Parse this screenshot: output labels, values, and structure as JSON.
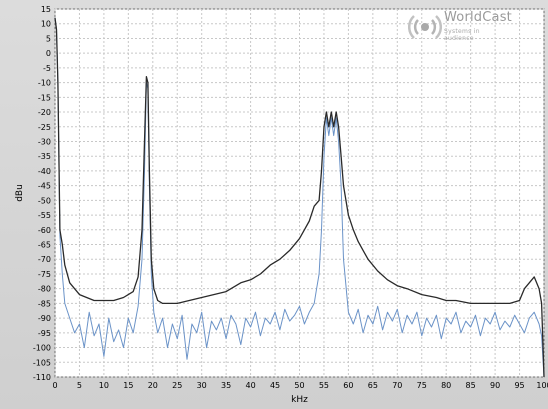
{
  "brand": {
    "name": "WorldCast",
    "tagline": "Systems in audience"
  },
  "chart_data": {
    "type": "line",
    "title": "",
    "xlabel": "kHz",
    "ylabel": "dBu",
    "xlim": [
      0,
      100
    ],
    "ylim": [
      -110,
      15
    ],
    "xticks": [
      0,
      5,
      10,
      15,
      20,
      25,
      30,
      35,
      40,
      45,
      50,
      55,
      60,
      65,
      70,
      75,
      80,
      85,
      90,
      95,
      100
    ],
    "yticks": [
      15,
      10,
      5,
      0,
      -5,
      -10,
      -15,
      -20,
      -25,
      -30,
      -35,
      -40,
      -45,
      -50,
      -55,
      -60,
      -65,
      -70,
      -75,
      -80,
      -85,
      -90,
      -95,
      -100,
      -105,
      -110
    ],
    "grid": true,
    "series": [
      {
        "color": "#2a2a2a",
        "x": [
          0,
          0.3,
          0.6,
          1,
          1.5,
          2,
          3,
          5,
          8,
          10,
          12,
          14,
          16,
          17,
          17.8,
          18.3,
          18.7,
          19,
          19.3,
          19.7,
          20.2,
          21,
          22,
          25,
          30,
          35,
          38,
          40,
          42,
          44,
          46,
          48,
          50,
          51,
          52,
          53,
          54,
          54.5,
          55,
          55.5,
          56,
          56.5,
          57,
          57.5,
          58,
          58.5,
          59,
          60,
          61,
          62,
          63,
          64,
          66,
          68,
          70,
          72,
          75,
          78,
          80,
          82,
          85,
          88,
          90,
          93,
          95,
          96,
          97,
          98,
          99,
          99.5,
          100
        ],
        "y": [
          12,
          8,
          -10,
          -60,
          -65,
          -72,
          -78,
          -82,
          -84,
          -84,
          -84,
          -83,
          -81,
          -76,
          -60,
          -30,
          -8,
          -10,
          -40,
          -70,
          -80,
          -84,
          -85,
          -85,
          -83,
          -81,
          -78,
          -77,
          -75,
          -72,
          -70,
          -67,
          -63,
          -60,
          -57,
          -52,
          -50,
          -40,
          -25,
          -20,
          -25,
          -20,
          -25,
          -20,
          -25,
          -35,
          -45,
          -55,
          -60,
          -64,
          -67,
          -70,
          -74,
          -77,
          -79,
          -80,
          -82,
          -83,
          -84,
          -84,
          -85,
          -85,
          -85,
          -85,
          -84,
          -80,
          -78,
          -76,
          -80,
          -85,
          -110
        ]
      },
      {
        "color": "#6b93c8",
        "x": [
          0,
          0.3,
          0.6,
          1,
          1.5,
          2,
          3,
          4,
          5,
          6,
          7,
          8,
          9,
          10,
          11,
          12,
          13,
          14,
          15,
          16,
          17,
          17.8,
          18.3,
          18.7,
          19,
          19.3,
          19.7,
          20.2,
          21,
          22,
          23,
          24,
          25,
          26,
          27,
          28,
          29,
          30,
          31,
          32,
          33,
          34,
          35,
          36,
          37,
          38,
          39,
          40,
          41,
          42,
          43,
          44,
          45,
          46,
          47,
          48,
          49,
          50,
          51,
          52,
          53,
          53.5,
          54,
          54.5,
          55,
          55.5,
          56,
          56.5,
          57,
          57.5,
          58,
          58.5,
          59,
          60,
          61,
          62,
          63,
          64,
          65,
          66,
          67,
          68,
          69,
          70,
          71,
          72,
          73,
          74,
          75,
          76,
          77,
          78,
          79,
          80,
          81,
          82,
          83,
          84,
          85,
          86,
          87,
          88,
          89,
          90,
          91,
          92,
          93,
          94,
          95,
          96,
          97,
          98,
          99,
          99.5,
          100
        ],
        "y": [
          12,
          8,
          -10,
          -62,
          -75,
          -85,
          -90,
          -95,
          -92,
          -100,
          -88,
          -96,
          -92,
          -103,
          -90,
          -98,
          -94,
          -100,
          -90,
          -95,
          -86,
          -70,
          -40,
          -10,
          -12,
          -45,
          -75,
          -88,
          -95,
          -90,
          -100,
          -92,
          -97,
          -89,
          -104,
          -92,
          -95,
          -88,
          -100,
          -91,
          -94,
          -90,
          -97,
          -89,
          -92,
          -99,
          -90,
          -93,
          -88,
          -96,
          -90,
          -92,
          -88,
          -94,
          -87,
          -91,
          -89,
          -86,
          -92,
          -88,
          -85,
          -80,
          -75,
          -60,
          -35,
          -22,
          -28,
          -22,
          -28,
          -22,
          -30,
          -45,
          -70,
          -88,
          -92,
          -87,
          -95,
          -89,
          -92,
          -86,
          -94,
          -88,
          -91,
          -87,
          -95,
          -89,
          -92,
          -88,
          -96,
          -90,
          -93,
          -89,
          -97,
          -90,
          -92,
          -88,
          -95,
          -91,
          -93,
          -89,
          -96,
          -90,
          -92,
          -88,
          -94,
          -91,
          -93,
          -89,
          -92,
          -95,
          -90,
          -88,
          -92,
          -96,
          -110
        ]
      }
    ]
  }
}
